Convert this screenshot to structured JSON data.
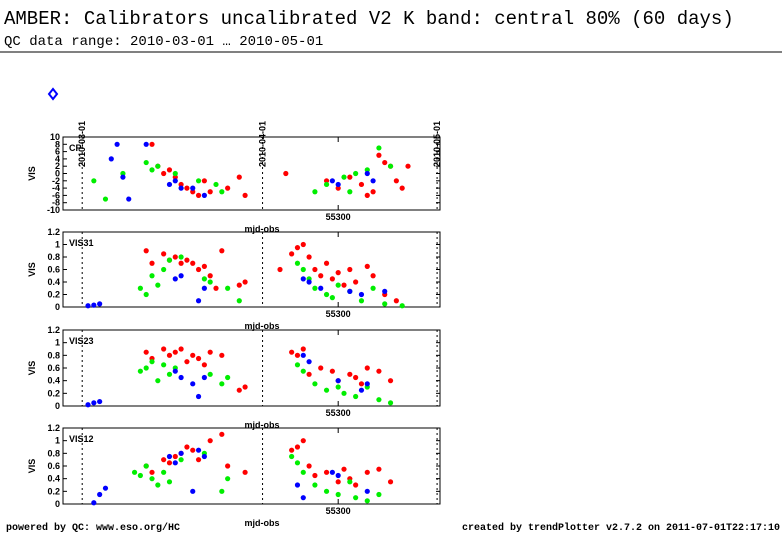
{
  "header": {
    "title": "AMBER: Calibrators uncalibrated V2 K band: central 80% (60 days)",
    "subtitle": "QC data range: 2010-03-01 … 2010-05-01"
  },
  "footer": {
    "left": "powered by QC: www.eso.org/HC",
    "right": "created by trendPlotter v2.7.2 on 2011-07-01T22:17:10"
  },
  "markers": [
    {
      "value": 55256,
      "label": "2010-03-01"
    },
    {
      "value": 55287,
      "label": "2010-04-01"
    },
    {
      "value": 55317,
      "label": "2010-05-01"
    }
  ],
  "chart_data": [
    {
      "type": "scatter",
      "label": "CP",
      "xlabel": "mjd-obs",
      "ylabel": "VIS",
      "xlim": [
        55252.7,
        55317.5
      ],
      "xticks": [
        55300
      ],
      "ylim": [
        -10,
        10
      ],
      "yticks": [
        -10,
        -8,
        -6,
        -4,
        -2,
        0,
        2,
        4,
        6,
        8,
        10
      ],
      "series": [
        {
          "color": "#ff0000",
          "x": [
            55268,
            55269,
            55270,
            55271,
            55272,
            55273,
            55274,
            55275,
            55276,
            55277,
            55278,
            55281,
            55283,
            55284,
            55291,
            55298,
            55300,
            55302,
            55304,
            55305,
            55306,
            55307,
            55308,
            55309,
            55310,
            55311,
            55312
          ],
          "values": [
            8,
            2,
            0,
            1,
            -1,
            -3,
            -4,
            -5,
            -6,
            -2,
            -5,
            -4,
            -1,
            -6,
            0,
            -2,
            -4,
            -1,
            -3,
            -6,
            -5,
            5,
            3,
            2,
            -2,
            -4,
            2
          ]
        },
        {
          "color": "#00ee00",
          "x": [
            55258,
            55260,
            55263,
            55267,
            55268,
            55269,
            55272,
            55276,
            55279,
            55280,
            55296,
            55298,
            55301,
            55302,
            55303,
            55305,
            55307,
            55309
          ],
          "values": [
            -2,
            -7,
            0,
            3,
            1,
            2,
            0,
            -2,
            -3,
            -5,
            -5,
            -3,
            -1,
            -5,
            0,
            1,
            7,
            2
          ]
        },
        {
          "color": "#0000ff",
          "x": [
            55261,
            55262,
            55263,
            55264,
            55267,
            55271,
            55272,
            55273,
            55275,
            55277,
            55299,
            55300,
            55305,
            55306
          ],
          "values": [
            4,
            8,
            -1,
            -7,
            8,
            -3,
            -2,
            -4,
            -4,
            -6,
            -2,
            -3,
            0,
            -2
          ]
        }
      ]
    },
    {
      "type": "scatter",
      "label": "VIS31",
      "xlabel": "mjd-obs",
      "ylabel": "VIS",
      "xlim": [
        55252.7,
        55317.5
      ],
      "xticks": [
        55300
      ],
      "ylim": [
        0,
        1.2
      ],
      "yticks": [
        0,
        0.2,
        0.4,
        0.6,
        0.8,
        1,
        1.2
      ],
      "series": [
        {
          "color": "#ff0000",
          "x": [
            55267,
            55268,
            55270,
            55271,
            55272,
            55273,
            55274,
            55275,
            55276,
            55277,
            55278,
            55279,
            55280,
            55283,
            55284,
            55290,
            55292,
            55293,
            55294,
            55295,
            55296,
            55297,
            55298,
            55299,
            55300,
            55301,
            55302,
            55303,
            55305,
            55306,
            55308,
            55310
          ],
          "values": [
            0.9,
            0.7,
            0.85,
            0.75,
            0.8,
            0.7,
            0.75,
            0.7,
            0.6,
            0.65,
            0.5,
            0.3,
            0.9,
            0.35,
            0.4,
            0.6,
            0.85,
            0.95,
            1.0,
            0.8,
            0.6,
            0.5,
            0.7,
            0.45,
            0.55,
            0.35,
            0.6,
            0.4,
            0.65,
            0.5,
            0.2,
            0.1
          ]
        },
        {
          "color": "#00ee00",
          "x": [
            55266,
            55267,
            55268,
            55269,
            55270,
            55271,
            55273,
            55277,
            55278,
            55281,
            55283,
            55293,
            55294,
            55295,
            55296,
            55298,
            55299,
            55300,
            55302,
            55304,
            55306,
            55308,
            55311
          ],
          "values": [
            0.3,
            0.2,
            0.5,
            0.35,
            0.6,
            0.75,
            0.8,
            0.45,
            0.4,
            0.3,
            0.1,
            0.7,
            0.6,
            0.45,
            0.3,
            0.2,
            0.15,
            0.35,
            0.25,
            0.1,
            0.3,
            0.05,
            0.02
          ]
        },
        {
          "color": "#0000ff",
          "x": [
            55257,
            55258,
            55259,
            55272,
            55273,
            55276,
            55277,
            55294,
            55295,
            55297,
            55302,
            55304,
            55308
          ],
          "values": [
            0.02,
            0.03,
            0.05,
            0.45,
            0.5,
            0.1,
            0.3,
            0.45,
            0.4,
            0.3,
            0.25,
            0.2,
            0.25
          ]
        }
      ]
    },
    {
      "type": "scatter",
      "label": "VIS23",
      "xlabel": "mjd-obs",
      "ylabel": "VIS",
      "xlim": [
        55252.7,
        55317.5
      ],
      "xticks": [
        55300
      ],
      "ylim": [
        0,
        1.2
      ],
      "yticks": [
        0,
        0.2,
        0.4,
        0.6,
        0.8,
        1,
        1.2
      ],
      "series": [
        {
          "color": "#ff0000",
          "x": [
            55267,
            55268,
            55270,
            55271,
            55272,
            55273,
            55274,
            55275,
            55276,
            55277,
            55278,
            55280,
            55283,
            55284,
            55292,
            55293,
            55294,
            55295,
            55297,
            55299,
            55300,
            55302,
            55303,
            55304,
            55305,
            55307,
            55309
          ],
          "values": [
            0.85,
            0.75,
            0.9,
            0.8,
            0.85,
            0.9,
            0.7,
            0.8,
            0.75,
            0.65,
            0.85,
            0.8,
            0.25,
            0.3,
            0.85,
            0.8,
            0.9,
            0.5,
            0.6,
            0.55,
            0.4,
            0.5,
            0.45,
            0.35,
            0.6,
            0.55,
            0.4
          ]
        },
        {
          "color": "#00ee00",
          "x": [
            55266,
            55267,
            55268,
            55269,
            55270,
            55271,
            55272,
            55278,
            55280,
            55281,
            55293,
            55294,
            55296,
            55298,
            55300,
            55301,
            55303,
            55305,
            55307,
            55309
          ],
          "values": [
            0.55,
            0.6,
            0.7,
            0.4,
            0.65,
            0.5,
            0.6,
            0.5,
            0.35,
            0.45,
            0.65,
            0.55,
            0.35,
            0.25,
            0.3,
            0.2,
            0.15,
            0.3,
            0.1,
            0.05
          ]
        },
        {
          "color": "#0000ff",
          "x": [
            55257,
            55258,
            55259,
            55272,
            55273,
            55275,
            55276,
            55277,
            55294,
            55295,
            55300,
            55304,
            55305
          ],
          "values": [
            0.02,
            0.05,
            0.07,
            0.55,
            0.45,
            0.35,
            0.15,
            0.45,
            0.8,
            0.7,
            0.4,
            0.25,
            0.35
          ]
        }
      ]
    },
    {
      "type": "scatter",
      "label": "VIS12",
      "xlabel": "mjd-obs",
      "ylabel": "VIS",
      "xlim": [
        55252.7,
        55317.5
      ],
      "xticks": [
        55300
      ],
      "ylim": [
        0,
        1.2
      ],
      "yticks": [
        0,
        0.2,
        0.4,
        0.6,
        0.8,
        1,
        1.2
      ],
      "series": [
        {
          "color": "#ff0000",
          "x": [
            55267,
            55268,
            55270,
            55271,
            55272,
            55273,
            55274,
            55275,
            55276,
            55278,
            55280,
            55281,
            55284,
            55292,
            55293,
            55294,
            55295,
            55296,
            55298,
            55300,
            55301,
            55302,
            55303,
            55305,
            55307,
            55309
          ],
          "values": [
            0.6,
            0.5,
            0.7,
            0.65,
            0.75,
            0.8,
            0.9,
            0.85,
            0.7,
            1.0,
            1.1,
            0.6,
            0.5,
            0.85,
            0.9,
            1.0,
            0.6,
            0.45,
            0.5,
            0.35,
            0.55,
            0.4,
            0.3,
            0.5,
            0.55,
            0.35
          ]
        },
        {
          "color": "#00ee00",
          "x": [
            55265,
            55266,
            55267,
            55268,
            55269,
            55270,
            55271,
            55273,
            55277,
            55280,
            55281,
            55292,
            55293,
            55294,
            55296,
            55298,
            55300,
            55302,
            55303,
            55305,
            55307
          ],
          "values": [
            0.5,
            0.45,
            0.6,
            0.4,
            0.3,
            0.5,
            0.35,
            0.7,
            0.8,
            0.2,
            0.4,
            0.75,
            0.65,
            0.5,
            0.3,
            0.2,
            0.15,
            0.35,
            0.1,
            0.05,
            0.15
          ]
        },
        {
          "color": "#0000ff",
          "x": [
            55258,
            55259,
            55260,
            55271,
            55272,
            55273,
            55275,
            55276,
            55277,
            55293,
            55294,
            55299,
            55300,
            55305
          ],
          "values": [
            0.02,
            0.15,
            0.25,
            0.75,
            0.65,
            0.8,
            0.2,
            0.85,
            0.75,
            0.3,
            0.1,
            0.5,
            0.45,
            0.2
          ]
        }
      ]
    }
  ]
}
